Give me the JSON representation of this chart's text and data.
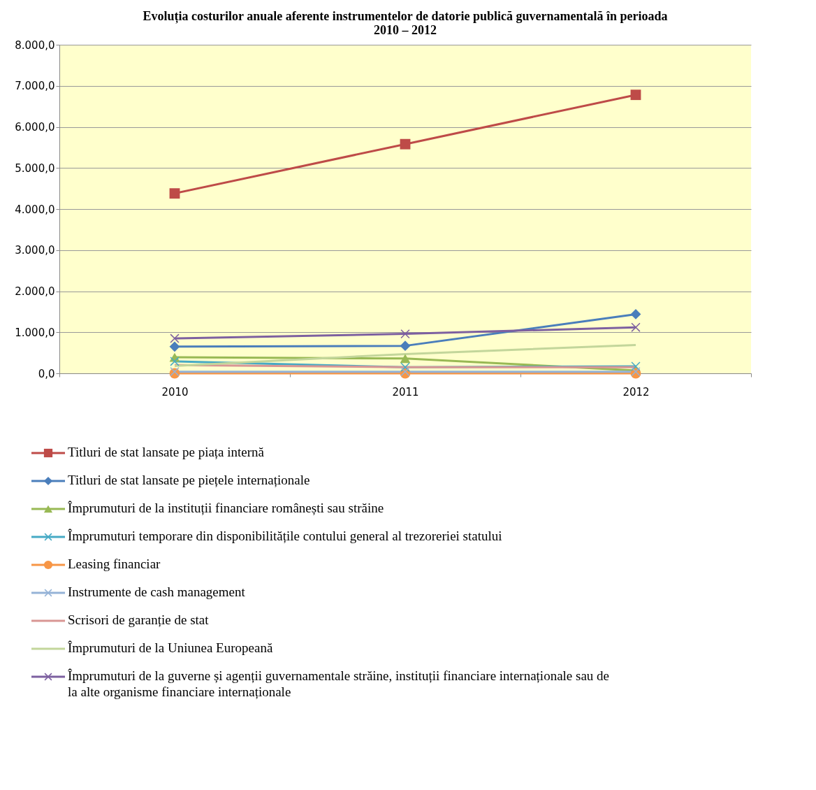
{
  "chart_data": {
    "type": "line",
    "title": "Evoluția costurilor anuale aferente instrumentelor de datorie publică guvernamentală în perioada 2010 – 2012",
    "categories": [
      "2010",
      "2011",
      "2012"
    ],
    "ylim": [
      0,
      8000
    ],
    "yticks": [
      {
        "value": 0,
        "label": "0,0"
      },
      {
        "value": 1000,
        "label": "1.000,0"
      },
      {
        "value": 2000,
        "label": "2.000,0"
      },
      {
        "value": 3000,
        "label": "3.000,0"
      },
      {
        "value": 4000,
        "label": "4.000,0"
      },
      {
        "value": 5000,
        "label": "5.000,0"
      },
      {
        "value": 6000,
        "label": "6.000,0"
      },
      {
        "value": 7000,
        "label": "7.000,0"
      },
      {
        "value": 8000,
        "label": "8.000,0"
      }
    ],
    "grid": "y",
    "legend": "bottom",
    "line_style": "solid",
    "series": [
      {
        "name": "Titluri de stat lansate pe piața internă",
        "color": "#be4b48",
        "marker": "square",
        "values": [
          4380,
          5580,
          6780
        ]
      },
      {
        "name": "Titluri de stat lansate pe piețele internaționale",
        "color": "#4a7ebb",
        "marker": "diamond",
        "values": [
          650,
          670,
          1440
        ]
      },
      {
        "name": "Împrumuturi de la instituții financiare românești sau străine",
        "color": "#98b954",
        "marker": "triangle",
        "values": [
          390,
          360,
          70
        ]
      },
      {
        "name": "Împrumuturi temporare din disponibilitățile contului general al trezoreriei statului",
        "color": "#46aac5",
        "marker": "cross",
        "values": [
          290,
          150,
          170
        ]
      },
      {
        "name": "Leasing financiar",
        "color": "#f79646",
        "marker": "circle",
        "values": [
          0,
          0,
          0
        ]
      },
      {
        "name": "Instrumente de cash management",
        "color": "#95b3d7",
        "marker": "cross",
        "values": [
          40,
          40,
          40
        ]
      },
      {
        "name": "Scrisori de garanție de stat",
        "color": "#d99694",
        "marker": "none",
        "values": [
          200,
          150,
          150
        ]
      },
      {
        "name": "Împrumuturi de la Uniunea Europeană",
        "color": "#c3d69b",
        "marker": "none",
        "values": [
          180,
          470,
          690
        ]
      },
      {
        "name": "Împrumuturi de la guverne și agenții guvernamentale străine, instituții financiare internaționale sau de la alte organisme financiare internaționale",
        "color": "#7d60a0",
        "marker": "cross",
        "values": [
          850,
          960,
          1120
        ]
      }
    ]
  }
}
